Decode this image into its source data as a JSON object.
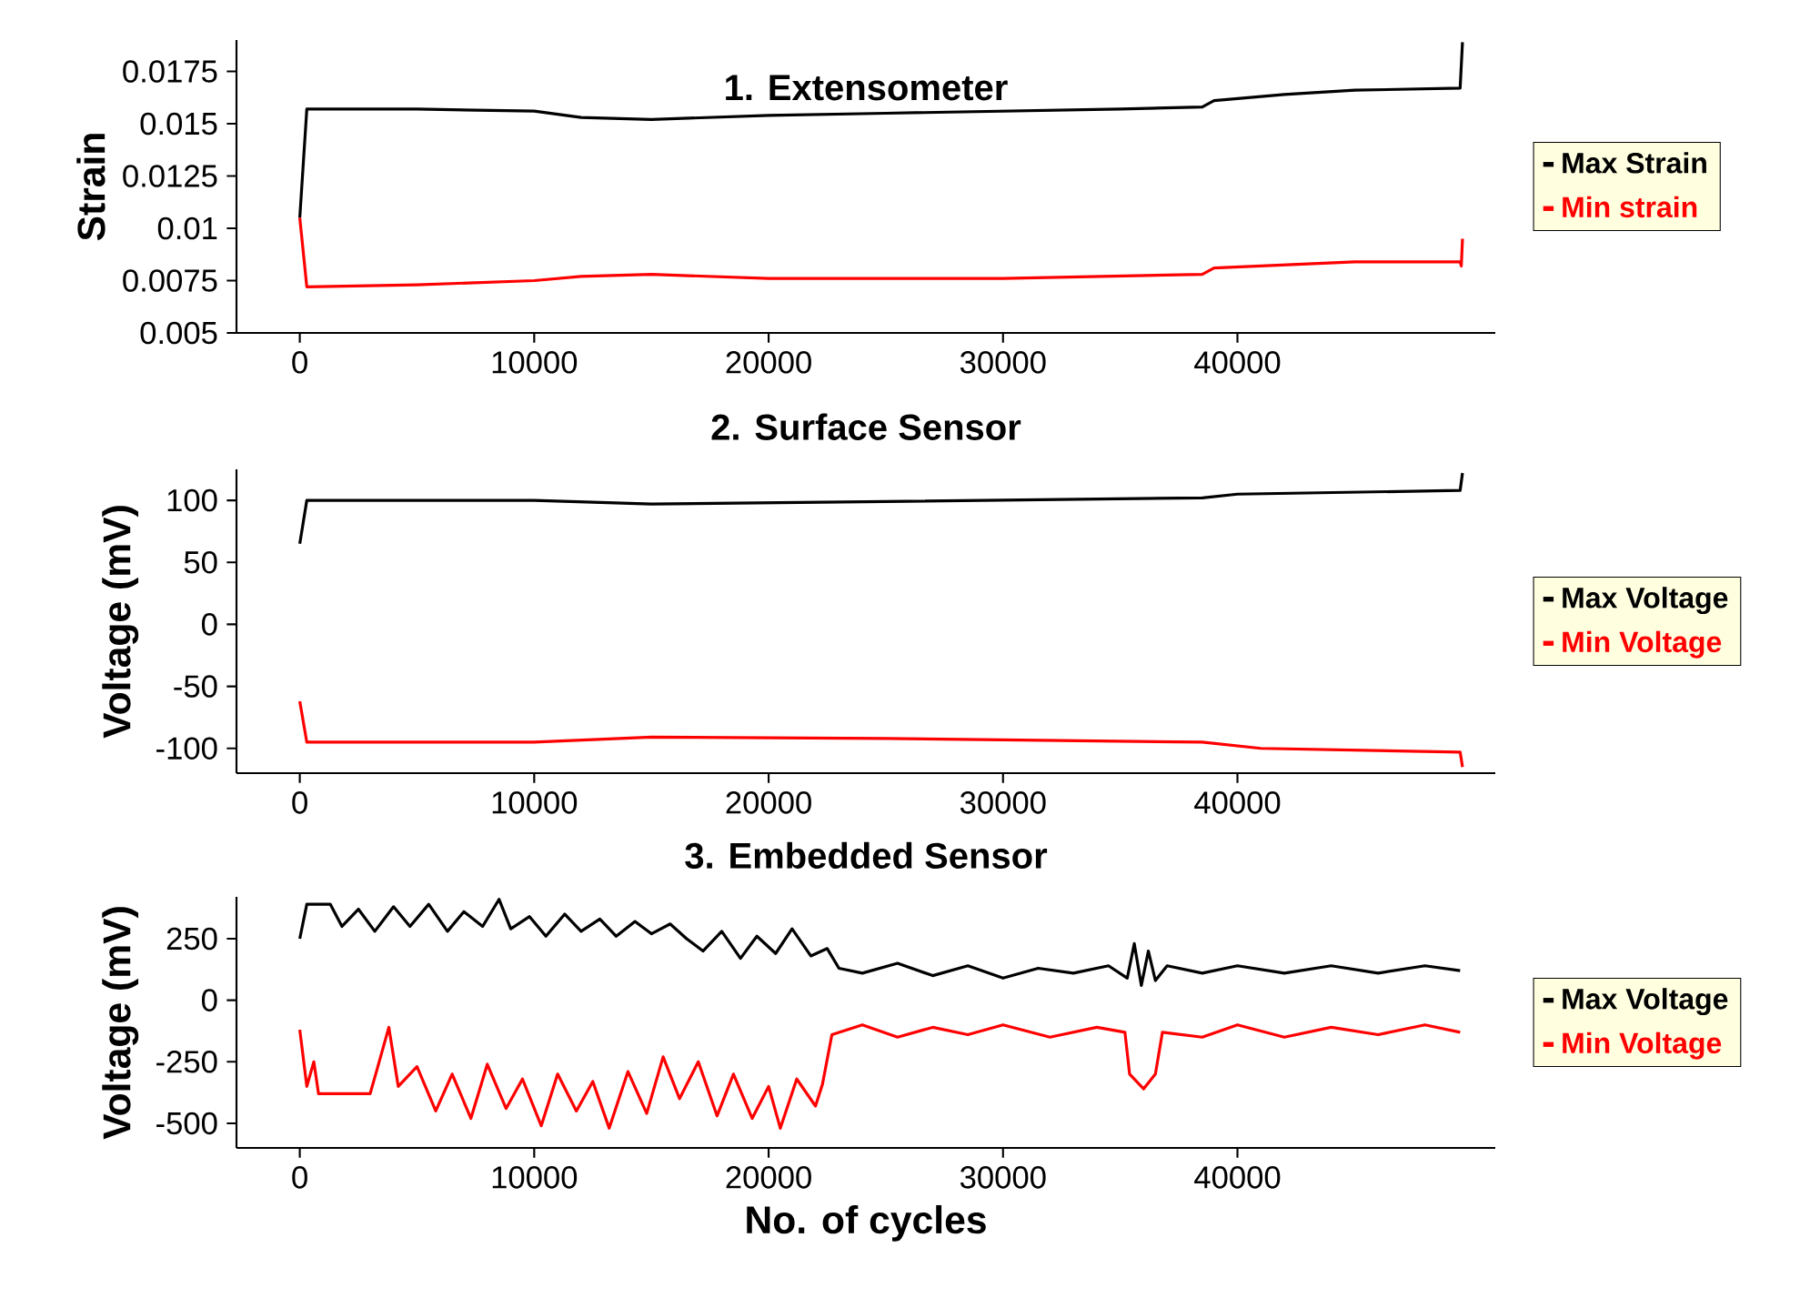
{
  "chart_data": [
    {
      "type": "line",
      "title": "1. Extensometer",
      "ylabel": "Strain",
      "xlim": [
        -2700,
        51000
      ],
      "ylim": [
        0.005,
        0.019
      ],
      "xticks": [
        0,
        10000,
        20000,
        30000,
        40000
      ],
      "yticks": [
        0.005,
        0.0075,
        0.01,
        0.0125,
        0.015,
        0.0175
      ],
      "grid": false,
      "legend": "right",
      "marker": "none",
      "line_style": "solid",
      "series": [
        {
          "name": "Max Strain",
          "color": "#000000",
          "x": [
            0,
            300,
            5000,
            10000,
            12000,
            15000,
            20000,
            25000,
            30000,
            35000,
            38500,
            39000,
            42000,
            45000,
            49500,
            49600
          ],
          "values": [
            0.0105,
            0.0157,
            0.0157,
            0.0156,
            0.0153,
            0.0152,
            0.0154,
            0.0155,
            0.0156,
            0.0157,
            0.0158,
            0.0161,
            0.0164,
            0.0166,
            0.0167,
            0.0189
          ]
        },
        {
          "name": "Min strain",
          "color": "#ff0000",
          "x": [
            0,
            300,
            5000,
            10000,
            12000,
            15000,
            20000,
            30000,
            38500,
            39000,
            45000,
            49500,
            49550,
            49600
          ],
          "values": [
            0.0105,
            0.0072,
            0.0073,
            0.0075,
            0.0077,
            0.0078,
            0.0076,
            0.0076,
            0.0078,
            0.0081,
            0.0084,
            0.0084,
            0.0082,
            0.0095
          ]
        }
      ]
    },
    {
      "type": "line",
      "title": "2. Surface Sensor",
      "ylabel": "Voltage (mV)",
      "xlim": [
        -2700,
        51000
      ],
      "ylim": [
        -120,
        125
      ],
      "xticks": [
        0,
        10000,
        20000,
        30000,
        40000
      ],
      "yticks": [
        -100,
        -50,
        0,
        50,
        100
      ],
      "grid": false,
      "legend": "right",
      "marker": "none",
      "line_style": "solid",
      "series": [
        {
          "name": "Max Voltage",
          "color": "#000000",
          "x": [
            0,
            300,
            10000,
            15000,
            25000,
            38500,
            40000,
            49500,
            49600
          ],
          "values": [
            65,
            100,
            100,
            97,
            99,
            102,
            105,
            108,
            122
          ]
        },
        {
          "name": "Min Voltage",
          "color": "#ff0000",
          "x": [
            0,
            300,
            10000,
            15000,
            25000,
            38500,
            41000,
            49500,
            49600
          ],
          "values": [
            -62,
            -95,
            -95,
            -91,
            -92,
            -95,
            -100,
            -103,
            -115
          ]
        }
      ]
    },
    {
      "type": "line",
      "title": "3. Embedded Sensor",
      "xlabel": "No. of cycles",
      "ylabel": "Voltage (mV)",
      "xlim": [
        -2700,
        51000
      ],
      "ylim": [
        -600,
        420
      ],
      "xticks": [
        0,
        10000,
        20000,
        30000,
        40000
      ],
      "yticks": [
        -500,
        -250,
        0,
        250
      ],
      "grid": false,
      "legend": "right",
      "marker": "none",
      "line_style": "solid",
      "series": [
        {
          "name": "Max Voltage",
          "color": "#000000",
          "x": [
            0,
            300,
            1300,
            1800,
            2500,
            3200,
            4000,
            4700,
            5500,
            6300,
            7000,
            7800,
            8500,
            9000,
            9800,
            10500,
            11300,
            12000,
            12800,
            13500,
            14300,
            15000,
            15800,
            16500,
            17200,
            18000,
            18800,
            19500,
            20300,
            21000,
            21800,
            22500,
            23000,
            24000,
            25500,
            27000,
            28500,
            30000,
            31500,
            33000,
            34500,
            35300,
            35600,
            35900,
            36200,
            36500,
            37000,
            38500,
            40000,
            42000,
            44000,
            46000,
            48000,
            49500
          ],
          "values": [
            250,
            390,
            390,
            300,
            370,
            280,
            380,
            300,
            390,
            280,
            360,
            300,
            410,
            290,
            340,
            260,
            350,
            280,
            330,
            260,
            320,
            270,
            310,
            250,
            200,
            280,
            170,
            260,
            190,
            290,
            180,
            210,
            130,
            110,
            150,
            100,
            140,
            90,
            130,
            110,
            140,
            90,
            230,
            60,
            200,
            80,
            140,
            110,
            140,
            110,
            140,
            110,
            140,
            120
          ]
        },
        {
          "name": "Min Voltage",
          "color": "#ff0000",
          "x": [
            0,
            300,
            600,
            800,
            3000,
            3300,
            3800,
            4200,
            5000,
            5800,
            6500,
            7300,
            8000,
            8800,
            9500,
            10300,
            11000,
            11800,
            12500,
            13200,
            14000,
            14800,
            15500,
            16200,
            17000,
            17800,
            18500,
            19300,
            20000,
            20500,
            21200,
            22000,
            22300,
            22700,
            24000,
            25500,
            27000,
            28500,
            30000,
            32000,
            34000,
            35200,
            35400,
            36000,
            36500,
            36800,
            38500,
            40000,
            42000,
            44000,
            46000,
            48000,
            49500
          ],
          "values": [
            -120,
            -350,
            -250,
            -380,
            -380,
            -280,
            -110,
            -350,
            -270,
            -450,
            -300,
            -480,
            -260,
            -440,
            -320,
            -510,
            -300,
            -450,
            -330,
            -520,
            -290,
            -460,
            -230,
            -400,
            -250,
            -470,
            -300,
            -480,
            -350,
            -520,
            -320,
            -430,
            -340,
            -140,
            -100,
            -150,
            -110,
            -140,
            -100,
            -150,
            -110,
            -130,
            -300,
            -360,
            -300,
            -130,
            -150,
            -100,
            -150,
            -110,
            -140,
            -100,
            -130
          ]
        }
      ]
    }
  ]
}
